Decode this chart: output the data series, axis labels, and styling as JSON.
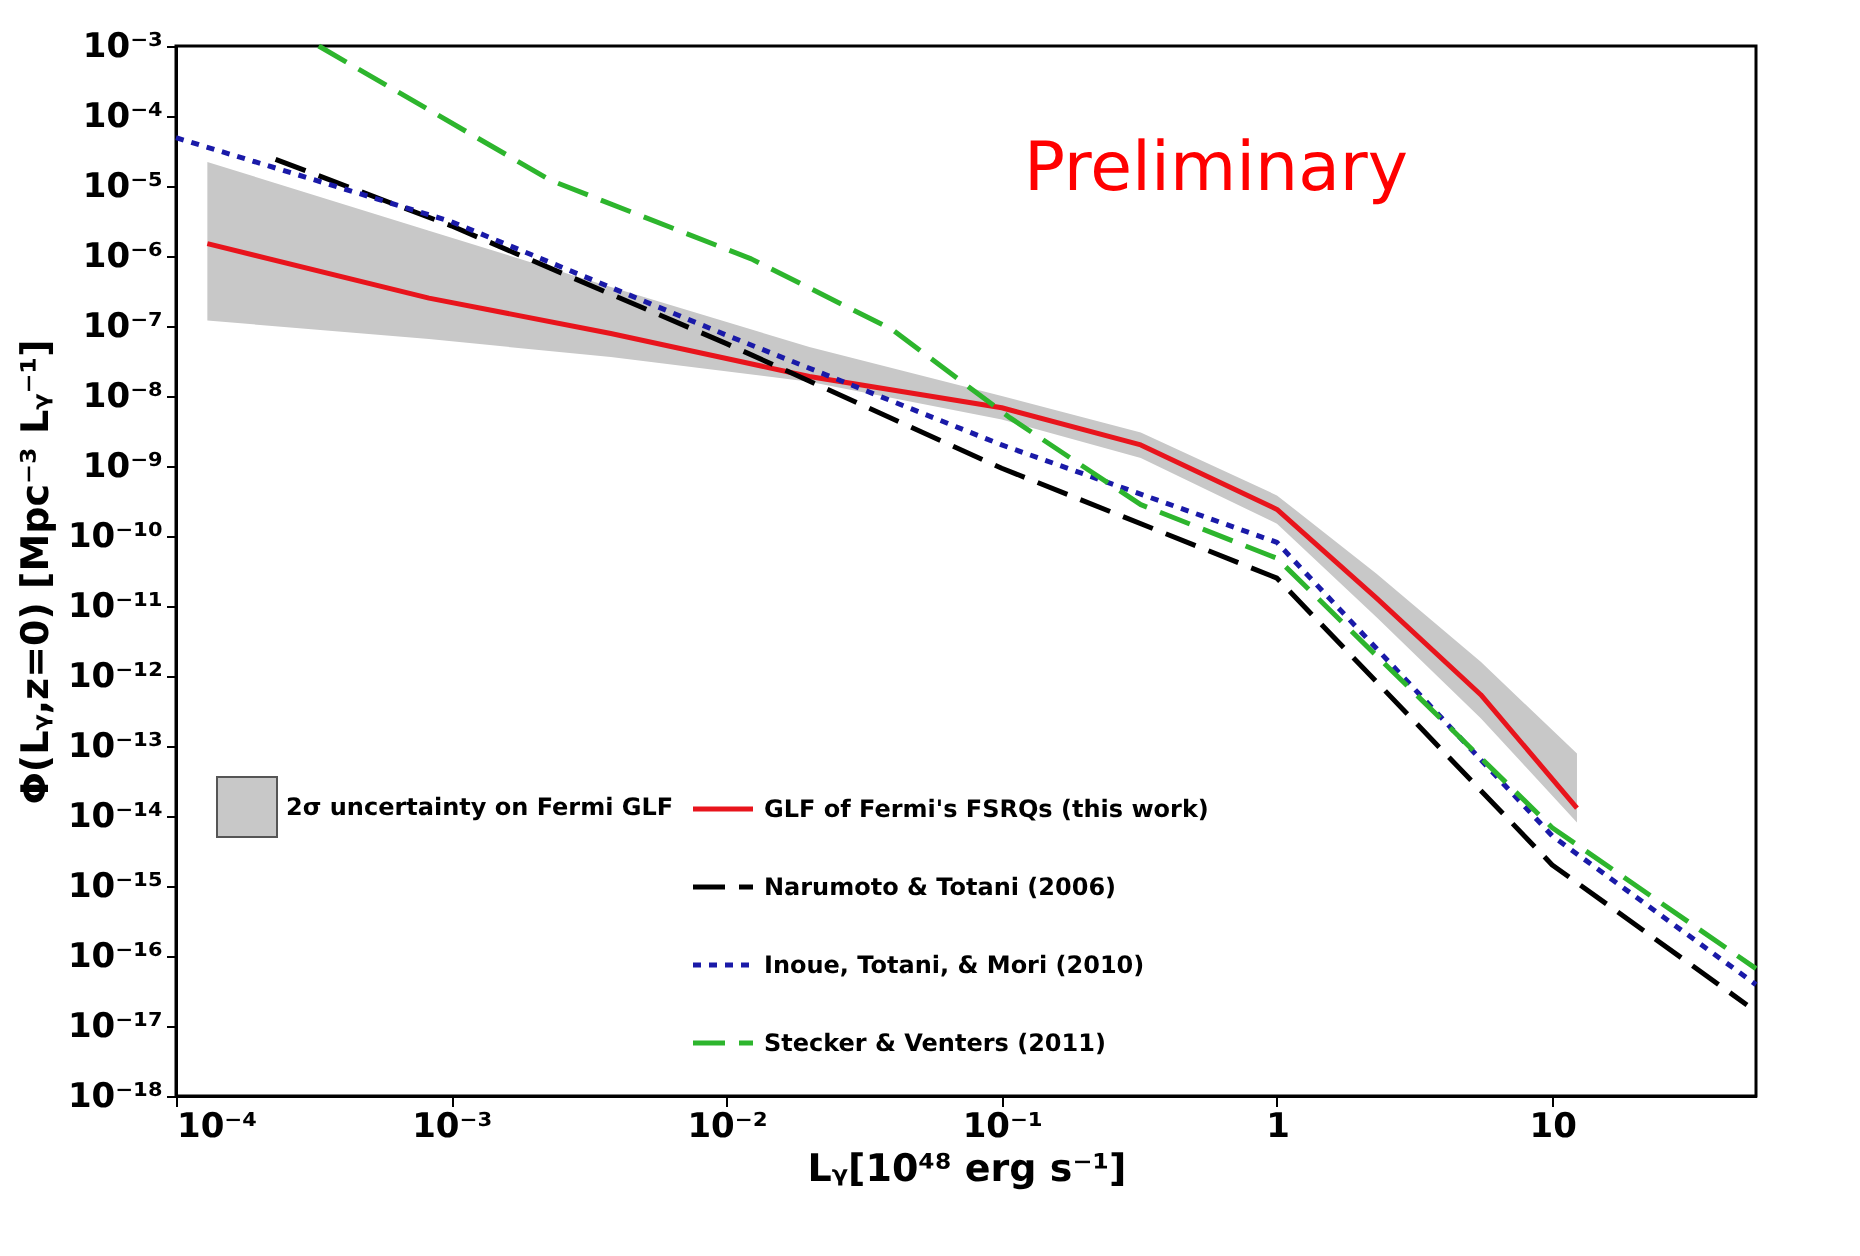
{
  "chart_data": {
    "type": "line",
    "xlabel": "Lᵧ[10⁴⁸ erg s⁻¹]",
    "ylabel": "Φ(Lᵧ,z=0) [Mpc⁻³ Lᵧ⁻¹]",
    "log": "xy",
    "grid": false,
    "legend": "bottom left",
    "marker": "none",
    "annotations": [
      "Preliminary",
      "2σ uncertainty on Fermi GLF"
    ],
    "xlim": [
      0.0001,
      55
    ],
    "ylim": [
      1e-18,
      0.001
    ],
    "xticks": [
      {
        "value": 0.0001,
        "label": "10⁻⁴"
      },
      {
        "value": 0.001,
        "label": "10⁻³"
      },
      {
        "value": 0.01,
        "label": "10⁻²"
      },
      {
        "value": 0.1,
        "label": "10⁻¹"
      },
      1,
      10
    ],
    "yticks": [
      {
        "value": 1e-18,
        "label": "10⁻¹⁸"
      },
      {
        "value": 1e-17,
        "label": "10⁻¹⁷"
      },
      {
        "value": 1e-16,
        "label": "10⁻¹⁶"
      },
      {
        "value": 1e-15,
        "label": "10⁻¹⁵"
      },
      {
        "value": 1e-14,
        "label": "10⁻¹⁴"
      },
      {
        "value": 1e-13,
        "label": "10⁻¹³"
      },
      {
        "value": 1e-12,
        "label": "10⁻¹²"
      },
      {
        "value": 1e-11,
        "label": "10⁻¹¹"
      },
      {
        "value": 1e-10,
        "label": "10⁻¹⁰"
      },
      {
        "value": 1e-09,
        "label": "10⁻⁹"
      },
      {
        "value": 1e-08,
        "label": "10⁻⁸"
      },
      {
        "value": 1e-07,
        "label": "10⁻⁷"
      },
      {
        "value": 1e-06,
        "label": "10⁻⁶"
      },
      {
        "value": 1e-05,
        "label": "10⁻⁵"
      },
      {
        "value": 0.0001,
        "label": "10⁻⁴"
      },
      {
        "value": 0.001,
        "label": "10⁻³"
      }
    ],
    "series": [
      {
        "name": "GLF of Fermi's FSRQs (this work)",
        "color": "#e8141c",
        "line_style": "solid",
        "x": [
          0.00013,
          0.00083,
          0.0038,
          0.02,
          0.1,
          0.32,
          1,
          2.3,
          5.5,
          12.3
        ],
        "values": [
          1.5e-06,
          2.5e-07,
          7.8e-08,
          1.9e-08,
          6.8e-09,
          2e-09,
          2.4e-10,
          1.3e-11,
          5.4e-13,
          1.3e-14
        ],
        "lower": [
          1.2e-07,
          6.5e-08,
          3.6e-08,
          1.6e-08,
          4.6e-09,
          1.3e-09,
          1.5e-10,
          6.9e-12,
          2.5e-13,
          8.1e-15
        ],
        "upper": [
          2.2e-05,
          2.3e-06,
          3.6e-07,
          5e-08,
          1e-08,
          3e-09,
          3.8e-10,
          2.9e-11,
          1.6e-12,
          7.8e-14
        ]
      },
      {
        "name": "Narumoto & Totani (2006)",
        "color": "#000000",
        "line_style": "dashed",
        "x": [
          0.00023,
          0.001,
          0.01,
          0.1,
          1,
          10,
          51
        ],
        "values": [
          2.4e-05,
          2.7e-06,
          5.6e-08,
          9.3e-10,
          2.5e-11,
          2e-15,
          2e-17
        ]
      },
      {
        "name": "Inoue, Totani, & Mori (2010)",
        "color": "#1a1aa8",
        "line_style": "dotted",
        "x": [
          0.0001,
          0.001,
          0.01,
          0.1,
          1,
          10,
          55
        ],
        "values": [
          4.9e-05,
          3.1e-06,
          7.4e-08,
          2e-09,
          8.1e-11,
          5.2e-15,
          3.9e-17
        ]
      },
      {
        "name": "Stecker & Venters (2011)",
        "color": "#2db52d",
        "line_style": "dashed",
        "x": [
          0.00033,
          0.0023,
          0.0123,
          0.04,
          0.107,
          0.32,
          1,
          10,
          55
        ],
        "values": [
          0.001,
          1.2e-05,
          9.1e-07,
          8.9e-08,
          4.9e-09,
          2.8e-10,
          4.8e-11,
          6.8e-15,
          6.6e-17
        ]
      }
    ]
  }
}
